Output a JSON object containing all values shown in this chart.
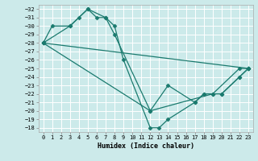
{
  "xlabel": "Humidex (Indice chaleur)",
  "background_color": "#cceaea",
  "grid_color": "#ffffff",
  "line_color": "#1a7a6e",
  "xlim": [
    -0.5,
    23.5
  ],
  "ylim": [
    -32.5,
    -17.5
  ],
  "yticks": [
    -18,
    -19,
    -20,
    -21,
    -22,
    -23,
    -24,
    -25,
    -26,
    -27,
    -28,
    -29,
    -30,
    -31,
    -32
  ],
  "xticks": [
    0,
    1,
    2,
    3,
    4,
    5,
    6,
    7,
    8,
    9,
    10,
    11,
    12,
    13,
    14,
    15,
    16,
    17,
    18,
    19,
    20,
    21,
    22,
    23
  ],
  "series": [
    {
      "x": [
        0,
        1,
        3,
        4,
        5,
        6,
        7,
        8,
        9,
        12,
        13,
        14,
        17,
        18,
        19,
        22,
        23
      ],
      "y": [
        -28,
        -30,
        -30,
        -31,
        -32,
        -31,
        -31,
        -30,
        -26,
        -18,
        -18,
        -19,
        -21,
        -22,
        -22,
        -25,
        -25
      ]
    },
    {
      "x": [
        0,
        3,
        5,
        7,
        8,
        12,
        14,
        17,
        18,
        20,
        22,
        23
      ],
      "y": [
        -28,
        -30,
        -32,
        -31,
        -29,
        -20,
        -23,
        -21,
        -22,
        -22,
        -24,
        -25
      ]
    },
    {
      "x": [
        0,
        12,
        19,
        20,
        22,
        23
      ],
      "y": [
        -28,
        -20,
        -22,
        -22,
        -24,
        -25
      ]
    },
    {
      "x": [
        0,
        23
      ],
      "y": [
        -28,
        -25
      ]
    }
  ]
}
